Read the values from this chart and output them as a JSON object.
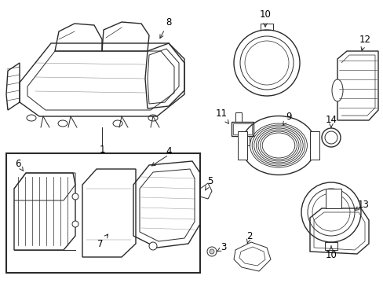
{
  "background_color": "#ffffff",
  "line_color": "#2a2a2a",
  "label_color": "#000000",
  "figsize": [
    4.89,
    3.6
  ],
  "dpi": 100,
  "xlim": [
    0,
    489
  ],
  "ylim": [
    0,
    360
  ]
}
